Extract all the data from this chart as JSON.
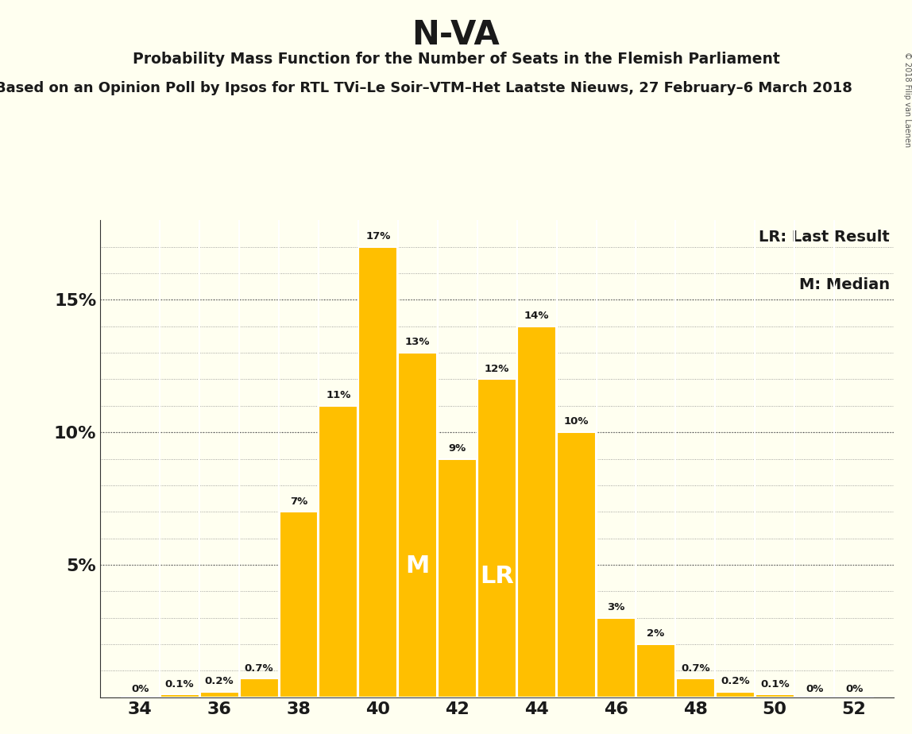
{
  "title": "N-VA",
  "subtitle1": "Probability Mass Function for the Number of Seats in the Flemish Parliament",
  "subtitle2": "Based on an Opinion Poll by Ipsos for RTL TVi–Le Soir–VTM–Het Laatste Nieuws, 27 February–6 March 2018",
  "copyright": "© 2018 Filip van Laenen",
  "categories": [
    34,
    35,
    36,
    37,
    38,
    39,
    40,
    41,
    42,
    43,
    44,
    45,
    46,
    47,
    48,
    49,
    50,
    51,
    52
  ],
  "values": [
    0.0,
    0.1,
    0.2,
    0.7,
    7.0,
    11.0,
    17.0,
    13.0,
    9.0,
    12.0,
    14.0,
    10.0,
    3.0,
    2.0,
    0.7,
    0.2,
    0.1,
    0.0,
    0.0
  ],
  "labels": [
    "0%",
    "0.1%",
    "0.2%",
    "0.7%",
    "7%",
    "11%",
    "17%",
    "13%",
    "9%",
    "12%",
    "14%",
    "10%",
    "3%",
    "2%",
    "0.7%",
    "0.2%",
    "0.1%",
    "0%",
    "0%"
  ],
  "bar_color": "#FFBF00",
  "background_color": "#FFFFF0",
  "text_color": "#1a1a1a",
  "bar_edge_color": "#FFFFFF",
  "median_seat": 41,
  "last_result_seat": 43,
  "median_label": "M",
  "last_result_label": "LR",
  "legend_lr": "LR: Last Result",
  "legend_m": "M: Median",
  "ylim": [
    0,
    18
  ],
  "xtick_positions": [
    34,
    36,
    38,
    40,
    42,
    44,
    46,
    48,
    50,
    52
  ]
}
